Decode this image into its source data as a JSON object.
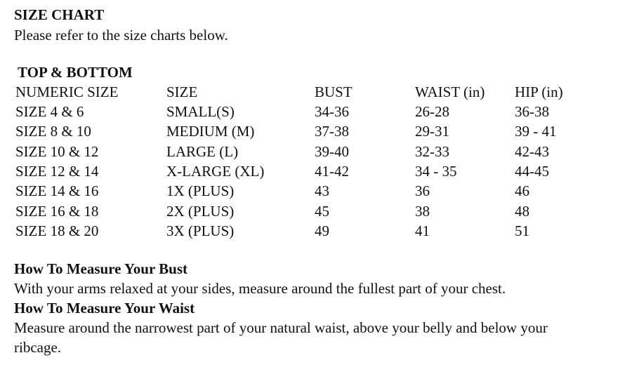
{
  "title": "SIZE CHART",
  "subtitle": "Please refer to the size charts below.",
  "section_title": "TOP & BOTTOM",
  "table": {
    "headers": [
      "NUMERIC SIZE",
      "SIZE",
      "BUST",
      "WAIST (in)",
      "HIP (in)"
    ],
    "rows": [
      [
        "SIZE 4 & 6",
        "SMALL(S)",
        "34-36",
        "26-28",
        "36-38"
      ],
      [
        "SIZE 8 & 10",
        "MEDIUM (M)",
        "37-38",
        "29-31",
        "39 - 41"
      ],
      [
        "SIZE 10 & 12",
        "LARGE (L)",
        "39-40",
        "32-33",
        "42-43"
      ],
      [
        "SIZE 12 & 14",
        "X-LARGE (XL)",
        "41-42",
        "34 - 35",
        "44-45"
      ],
      [
        "SIZE 14 & 16",
        "1X (PLUS)",
        "43",
        "36",
        "46"
      ],
      [
        "SIZE 16 & 18",
        "2X (PLUS)",
        "45",
        "38",
        "48"
      ],
      [
        "SIZE 18 & 20",
        "3X (PLUS)",
        "49",
        "41",
        "51"
      ]
    ]
  },
  "measure": {
    "bust_heading": "How To Measure Your Bust",
    "bust_text": "With your arms relaxed at your sides, measure around the fullest part of your chest.",
    "waist_heading": "How To Measure Your Waist",
    "waist_text_1": "Measure around the narrowest part of your natural waist, above your belly and below your",
    "waist_text_2": "ribcage."
  }
}
